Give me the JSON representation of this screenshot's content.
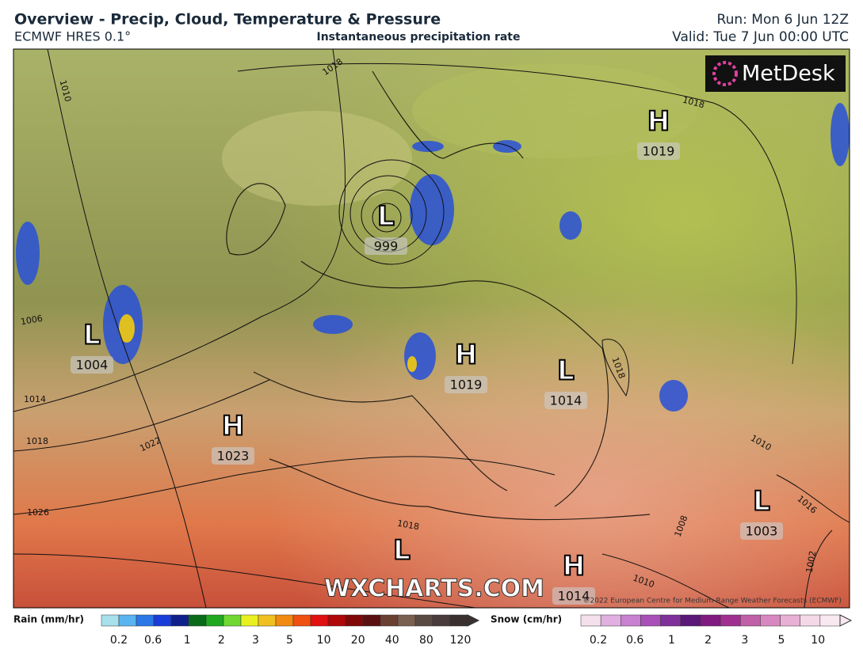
{
  "header": {
    "title": "Overview - Precip, Cloud, Temperature & Pressure",
    "model": "ECMWF HRES 0.1°",
    "product": "Instantaneous precipitation rate",
    "run": "Run: Mon 6 Jun 12Z",
    "valid": "Valid: Tue 7 Jun 00:00 UTC"
  },
  "logo": "MetDesk",
  "pressure_centers": [
    {
      "type": "L",
      "value": 999
    },
    {
      "type": "H",
      "value": 1019
    },
    {
      "type": "L",
      "value": 1004
    },
    {
      "type": "H",
      "value": 1019
    },
    {
      "type": "L",
      "value": 1014
    },
    {
      "type": "H",
      "value": 1023
    },
    {
      "type": "L",
      "value": 1003
    },
    {
      "type": "L"
    },
    {
      "type": "H",
      "value": 1014
    }
  ],
  "isobar_labels": [
    1010,
    1018,
    1018,
    1006,
    1014,
    1018,
    1022,
    1026,
    1018,
    1016,
    1010,
    1002,
    1008,
    1018,
    1010
  ],
  "watermark": "WXCHARTS.COM",
  "copyright": "©2022 European Centre for Medium-Range Weather Forecasts (ECMWF)",
  "legend": {
    "rain": {
      "label": "Rain (mm/hr)",
      "ticks": [
        0.2,
        0.6,
        1,
        2,
        3,
        5,
        10,
        20,
        40,
        80,
        120
      ],
      "colors": [
        "#a8e0ec",
        "#5ab4f0",
        "#2a78e8",
        "#1a3cd8",
        "#10208a",
        "#0a6a1a",
        "#20a820",
        "#70d830",
        "#e8f020",
        "#f0c020",
        "#f08a10",
        "#f05010",
        "#e01010",
        "#b00808",
        "#800808",
        "#5a1010",
        "#6a4030",
        "#7a6050",
        "#5a4a44",
        "#4a3c3c",
        "#3a3030"
      ]
    },
    "snow": {
      "label": "Snow (cm/hr)",
      "ticks": [
        0.2,
        0.6,
        1,
        2,
        3,
        5,
        10
      ],
      "colors": [
        "#f4e0ec",
        "#e0b0e0",
        "#c880d0",
        "#a850b8",
        "#80309a",
        "#5a1878",
        "#801a80",
        "#a03090",
        "#c060a8",
        "#d888c0",
        "#e8b0d4",
        "#f4d8e8",
        "#f8e8f0"
      ]
    }
  }
}
